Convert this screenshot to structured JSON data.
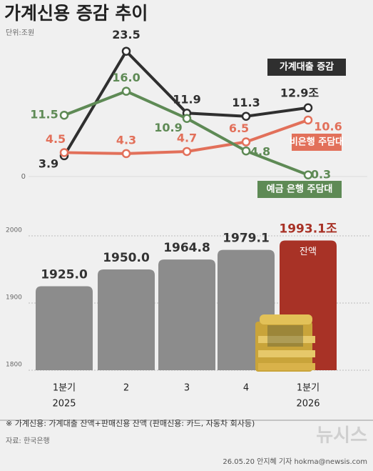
{
  "header": {
    "title": "가계신용 증감 추이",
    "unit": "단위:조원"
  },
  "chart_data": [
    {
      "type": "line",
      "ylim": [
        0,
        24
      ],
      "yticks": [
        0
      ],
      "series": [
        {
          "name": "가계대출 증감",
          "color": "#2f2f2f",
          "values": [
            3.9,
            23.5,
            11.9,
            11.3,
            12.9
          ],
          "value_labels": [
            "3.9",
            "23.5",
            "11.9",
            "11.3",
            "12.9조"
          ]
        },
        {
          "name": "비은행 주담대",
          "color": "#e2705a",
          "values": [
            4.5,
            4.3,
            4.7,
            6.5,
            10.6
          ]
        },
        {
          "name": "예금 은행 주담대",
          "color": "#5e8a55",
          "values": [
            11.5,
            16.0,
            10.9,
            4.8,
            0.3
          ],
          "value_labels": [
            "11.5",
            "16.0",
            "10.9",
            "4.8",
            "0.3"
          ]
        }
      ]
    },
    {
      "type": "bar",
      "categories": [
        "1분기",
        "2",
        "3",
        "4",
        "1분기"
      ],
      "years": [
        "2025",
        null,
        null,
        null,
        "2026"
      ],
      "values": [
        1925.0,
        1950.0,
        1964.8,
        1979.1,
        1993.1
      ],
      "value_labels": [
        "1925.0",
        "1950.0",
        "1964.8",
        "1979.1",
        "1993.1조"
      ],
      "colors": [
        "#8c8c8c",
        "#8c8c8c",
        "#8c8c8c",
        "#8c8c8c",
        "#a83226"
      ],
      "ylim": [
        1800,
        2000
      ],
      "yticks": [
        1800,
        1900,
        2000
      ],
      "annotation": "잔액"
    }
  ],
  "footer": {
    "note": "※  가계신용: 가계대출 잔액+판매신용 잔액 (판매신용: 카드, 자동차 회사등)",
    "source": "자료: 한국은행",
    "credit": "26.05.20 안지혜 기자 hokma@newsis.com",
    "watermark": "뉴시스"
  }
}
